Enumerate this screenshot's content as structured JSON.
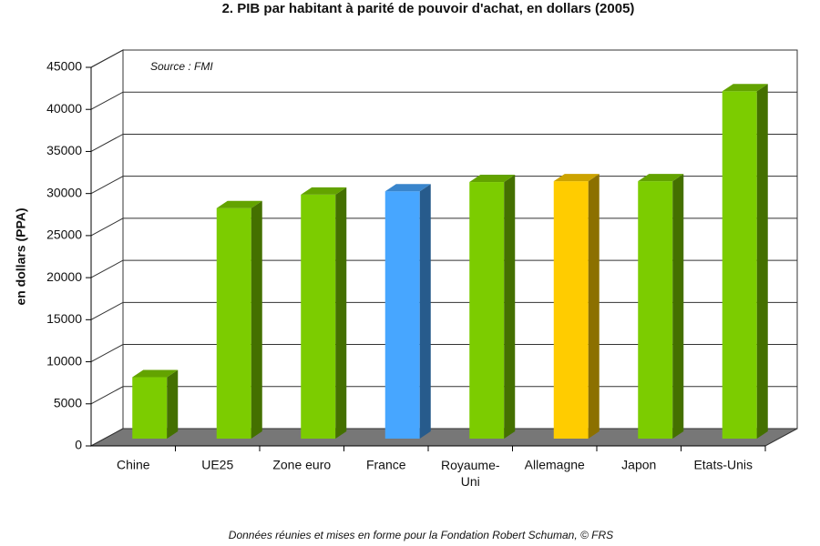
{
  "chart_data": {
    "type": "bar3d",
    "title": "2.  PIB par habitant à parité de pouvoir d'achat, en dollars (2005)",
    "y_label": "en dollars (PPA)",
    "annotation": "Source : FMI",
    "footer": "Données réunies et mises en forme pour la Fondation Robert Schuman, © FRS",
    "categories": [
      "Chine",
      "UE25",
      "Zone euro",
      "France",
      "Royaume-Uni",
      "Allemagne",
      "Japon",
      "Etats-Unis"
    ],
    "values": [
      7300,
      27400,
      29000,
      29400,
      30500,
      30600,
      30600,
      41300
    ],
    "colors": [
      "#7ccc00",
      "#7ccc00",
      "#7ccc00",
      "#47a6ff",
      "#7ccc00",
      "#ffcc00",
      "#7ccc00",
      "#7ccc00"
    ],
    "ylim": [
      0,
      45000
    ],
    "yticks": [
      0,
      5000,
      10000,
      15000,
      20000,
      25000,
      30000,
      35000,
      40000,
      45000
    ],
    "grid": true
  }
}
